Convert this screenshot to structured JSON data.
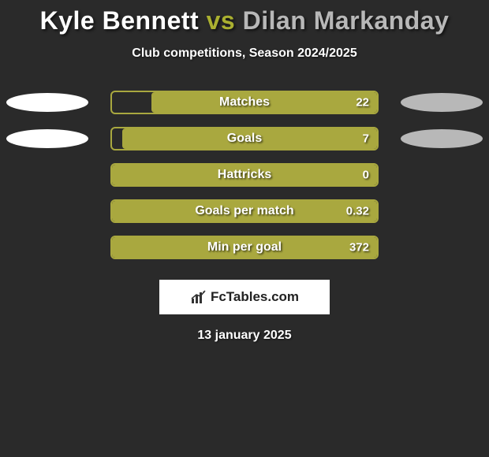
{
  "title": {
    "player_a": "Kyle Bennett",
    "vs": "vs",
    "player_b": "Dilan Markanday",
    "color_a": "#ffffff",
    "color_vs": "#aab030",
    "color_b": "#b8b8b8"
  },
  "subtitle": "Club competitions, Season 2024/2025",
  "colors": {
    "bar_border": "#a9a83f",
    "bar_fill": "#a9a83f",
    "ellipse_left": "#ffffff",
    "ellipse_right": "#b8b8b8",
    "background": "#2a2a2a"
  },
  "stats": [
    {
      "label": "Matches",
      "value": "22",
      "show_left_ellipse": true,
      "show_right_ellipse": true,
      "fill_from": "right",
      "fill_pct": 85
    },
    {
      "label": "Goals",
      "value": "7",
      "show_left_ellipse": true,
      "show_right_ellipse": true,
      "fill_from": "right",
      "fill_pct": 96
    },
    {
      "label": "Hattricks",
      "value": "0",
      "show_left_ellipse": false,
      "show_right_ellipse": false,
      "fill_from": "right",
      "fill_pct": 100
    },
    {
      "label": "Goals per match",
      "value": "0.32",
      "show_left_ellipse": false,
      "show_right_ellipse": false,
      "fill_from": "right",
      "fill_pct": 100
    },
    {
      "label": "Min per goal",
      "value": "372",
      "show_left_ellipse": false,
      "show_right_ellipse": false,
      "fill_from": "right",
      "fill_pct": 100
    }
  ],
  "footer": {
    "brand": "FcTables.com",
    "date": "13 january 2025"
  }
}
